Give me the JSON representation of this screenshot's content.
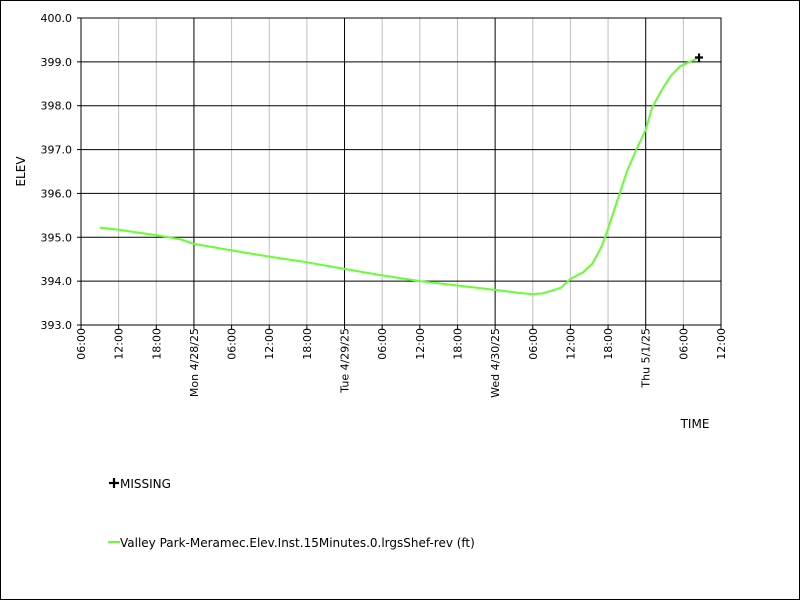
{
  "chart_data": {
    "type": "line",
    "ylabel": "ELEV",
    "xlabel": "TIME",
    "ylim": [
      393.0,
      400.0
    ],
    "y_ticks": [
      "400.0",
      "399.0",
      "398.0",
      "397.0",
      "396.0",
      "395.0",
      "394.0",
      "393.0"
    ],
    "x_range_hours": [
      0,
      102
    ],
    "x_ticks": [
      {
        "label": "06:00",
        "hour": 0,
        "major": false
      },
      {
        "label": "12:00",
        "hour": 6,
        "major": false
      },
      {
        "label": "18:00",
        "hour": 12,
        "major": false
      },
      {
        "label": "Mon 4/28/25",
        "hour": 18,
        "major": true
      },
      {
        "label": "06:00",
        "hour": 24,
        "major": false
      },
      {
        "label": "12:00",
        "hour": 30,
        "major": false
      },
      {
        "label": "18:00",
        "hour": 36,
        "major": false
      },
      {
        "label": "Tue 4/29/25",
        "hour": 42,
        "major": true
      },
      {
        "label": "06:00",
        "hour": 48,
        "major": false
      },
      {
        "label": "12:00",
        "hour": 54,
        "major": false
      },
      {
        "label": "18:00",
        "hour": 60,
        "major": false
      },
      {
        "label": "Wed 4/30/25",
        "hour": 66,
        "major": true
      },
      {
        "label": "06:00",
        "hour": 72,
        "major": false
      },
      {
        "label": "12:00",
        "hour": 78,
        "major": false
      },
      {
        "label": "18:00",
        "hour": 84,
        "major": false
      },
      {
        "label": "Thu 5/1/25",
        "hour": 90,
        "major": true
      },
      {
        "label": "06:00",
        "hour": 96,
        "major": false
      },
      {
        "label": "12:00",
        "hour": 102,
        "major": false
      }
    ],
    "grid": true,
    "series": [
      {
        "name": "Valley Park-Meramec.Elev.Inst.15Minutes.0.lrgsShef-rev (ft)",
        "color": "#66ff33",
        "points": [
          [
            3.0,
            395.22
          ],
          [
            6,
            395.17
          ],
          [
            12,
            395.05
          ],
          [
            16,
            394.95
          ],
          [
            18,
            394.85
          ],
          [
            24,
            394.7
          ],
          [
            30,
            394.56
          ],
          [
            36,
            394.43
          ],
          [
            42,
            394.28
          ],
          [
            48,
            394.13
          ],
          [
            54,
            394.0
          ],
          [
            60,
            393.9
          ],
          [
            66,
            393.8
          ],
          [
            70,
            393.73
          ],
          [
            72,
            393.7
          ],
          [
            73.5,
            393.72
          ],
          [
            75,
            393.78
          ],
          [
            76.5,
            393.85
          ],
          [
            78,
            394.05
          ],
          [
            80,
            394.2
          ],
          [
            81.5,
            394.4
          ],
          [
            83,
            394.8
          ],
          [
            84,
            395.2
          ],
          [
            85.5,
            395.85
          ],
          [
            87,
            396.5
          ],
          [
            88.5,
            397.0
          ],
          [
            90,
            397.45
          ],
          [
            91,
            397.95
          ],
          [
            92.5,
            398.35
          ],
          [
            94,
            398.68
          ],
          [
            95.5,
            398.9
          ],
          [
            97,
            399.0
          ],
          [
            98.5,
            399.1
          ]
        ]
      },
      {
        "name": "MISSING",
        "color": "#000000",
        "marker": "plus",
        "points": [
          [
            98.5,
            399.1
          ]
        ]
      }
    ],
    "legend_position": "bottom-left"
  }
}
